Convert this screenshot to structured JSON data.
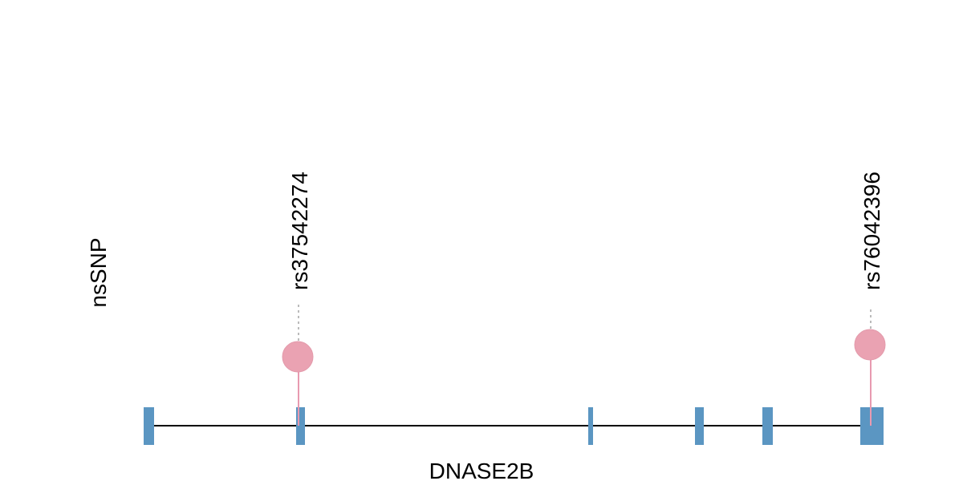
{
  "track": {
    "label": "nsSNP"
  },
  "snps": [
    {
      "label": "rs37542274"
    },
    {
      "label": "rs76042396"
    }
  ],
  "gene": {
    "name": "DNASE2B"
  }
}
